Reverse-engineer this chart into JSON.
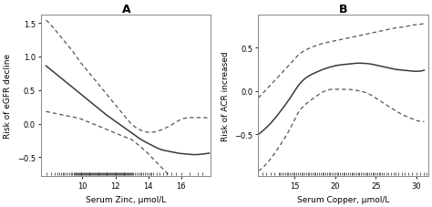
{
  "panel_A": {
    "title": "A",
    "xlabel": "Serum Zinc, μmol/L",
    "ylabel": "Risk of eGFR decline",
    "xlim": [
      7.5,
      17.8
    ],
    "ylim": [
      -0.78,
      1.62
    ],
    "yticks": [
      -0.5,
      0.0,
      0.5,
      1.0,
      1.5
    ],
    "xticks": [
      10,
      12,
      14,
      16
    ],
    "main_x": [
      7.8,
      8.2,
      8.6,
      9.0,
      9.4,
      9.8,
      10.2,
      10.6,
      11.0,
      11.4,
      11.8,
      12.2,
      12.6,
      13.0,
      13.4,
      13.8,
      14.2,
      14.6,
      15.0,
      15.4,
      15.8,
      16.2,
      16.6,
      17.0,
      17.4,
      17.7
    ],
    "main_y": [
      0.86,
      0.78,
      0.7,
      0.62,
      0.54,
      0.46,
      0.38,
      0.3,
      0.22,
      0.14,
      0.07,
      0.0,
      -0.07,
      -0.14,
      -0.21,
      -0.27,
      -0.32,
      -0.37,
      -0.4,
      -0.42,
      -0.44,
      -0.45,
      -0.46,
      -0.46,
      -0.45,
      -0.44
    ],
    "upper_y": [
      1.54,
      1.44,
      1.32,
      1.2,
      1.08,
      0.94,
      0.82,
      0.7,
      0.58,
      0.46,
      0.34,
      0.22,
      0.1,
      -0.01,
      -0.08,
      -0.12,
      -0.13,
      -0.11,
      -0.07,
      -0.02,
      0.04,
      0.08,
      0.09,
      0.09,
      0.09,
      0.08
    ],
    "lower_y": [
      0.18,
      0.16,
      0.14,
      0.12,
      0.1,
      0.08,
      0.04,
      0.0,
      -0.04,
      -0.08,
      -0.12,
      -0.16,
      -0.2,
      -0.24,
      -0.32,
      -0.4,
      -0.5,
      -0.6,
      -0.7,
      -0.8,
      -0.88,
      -0.94,
      -1.0,
      -1.04,
      -1.06,
      -1.06
    ],
    "rug_x": [
      7.8,
      8.1,
      8.3,
      8.5,
      8.6,
      8.7,
      8.8,
      8.9,
      9.0,
      9.1,
      9.2,
      9.3,
      9.4,
      9.5,
      9.55,
      9.6,
      9.65,
      9.7,
      9.75,
      9.8,
      9.85,
      9.9,
      9.95,
      10.0,
      10.05,
      10.1,
      10.15,
      10.2,
      10.25,
      10.3,
      10.35,
      10.4,
      10.45,
      10.5,
      10.55,
      10.6,
      10.65,
      10.7,
      10.75,
      10.8,
      10.85,
      10.9,
      10.95,
      11.0,
      11.05,
      11.1,
      11.15,
      11.2,
      11.25,
      11.3,
      11.35,
      11.4,
      11.45,
      11.5,
      11.55,
      11.6,
      11.65,
      11.7,
      11.75,
      11.8,
      11.85,
      11.9,
      11.95,
      12.0,
      12.05,
      12.1,
      12.15,
      12.2,
      12.25,
      12.3,
      12.35,
      12.4,
      12.45,
      12.5,
      12.55,
      12.6,
      12.65,
      12.7,
      12.75,
      12.8,
      12.85,
      12.9,
      12.95,
      13.0,
      13.1,
      13.2,
      13.3,
      13.4,
      13.5,
      13.6,
      13.7,
      13.8,
      13.9,
      14.0,
      14.1,
      14.2,
      14.3,
      14.5,
      14.7,
      14.9,
      15.1,
      15.4,
      15.7,
      16.0,
      16.5,
      17.0,
      17.3
    ]
  },
  "panel_B": {
    "title": "B",
    "xlabel": "Serum Copper, μmol/L",
    "ylabel": "Risk of ACR increased",
    "xlim": [
      10.5,
      31.5
    ],
    "ylim": [
      -0.98,
      0.88
    ],
    "yticks": [
      -0.5,
      0.0,
      0.5
    ],
    "xticks": [
      15,
      20,
      25,
      30
    ],
    "main_x": [
      10.5,
      11.5,
      12.5,
      13.5,
      14.5,
      15.5,
      16.5,
      17.5,
      18.5,
      19.5,
      20.5,
      21.5,
      22.5,
      23.5,
      24.5,
      25.0,
      25.5,
      26.5,
      27.5,
      28.5,
      29.5,
      30.5,
      31.0
    ],
    "main_y": [
      -0.5,
      -0.42,
      -0.32,
      -0.2,
      -0.07,
      0.07,
      0.16,
      0.21,
      0.25,
      0.28,
      0.3,
      0.31,
      0.32,
      0.32,
      0.31,
      0.3,
      0.29,
      0.27,
      0.25,
      0.24,
      0.23,
      0.23,
      0.24
    ],
    "upper_y": [
      -0.08,
      0.02,
      0.12,
      0.22,
      0.32,
      0.42,
      0.48,
      0.52,
      0.55,
      0.57,
      0.59,
      0.61,
      0.63,
      0.65,
      0.67,
      0.68,
      0.69,
      0.71,
      0.73,
      0.74,
      0.76,
      0.77,
      0.78
    ],
    "lower_y": [
      -0.92,
      -0.84,
      -0.72,
      -0.58,
      -0.42,
      -0.24,
      -0.14,
      -0.07,
      -0.01,
      0.02,
      0.02,
      0.02,
      0.01,
      -0.01,
      -0.05,
      -0.08,
      -0.11,
      -0.17,
      -0.23,
      -0.28,
      -0.32,
      -0.35,
      -0.35
    ],
    "rug_x": [
      11.0,
      11.5,
      12.0,
      12.5,
      13.0,
      13.2,
      13.4,
      13.6,
      13.8,
      14.0,
      14.2,
      14.4,
      14.6,
      14.8,
      15.0,
      15.2,
      15.4,
      15.6,
      15.8,
      16.0,
      16.2,
      16.4,
      16.6,
      16.8,
      17.0,
      17.2,
      17.4,
      17.6,
      17.8,
      18.0,
      18.2,
      18.4,
      18.6,
      18.8,
      19.0,
      19.2,
      19.4,
      19.6,
      19.8,
      20.0,
      20.2,
      20.4,
      20.6,
      20.8,
      21.0,
      21.2,
      21.4,
      21.6,
      21.8,
      22.0,
      22.2,
      22.4,
      22.6,
      22.8,
      23.0,
      23.2,
      23.4,
      23.6,
      23.8,
      24.0,
      24.2,
      24.4,
      24.6,
      24.8,
      25.0,
      25.2,
      25.4,
      25.6,
      25.8,
      26.0,
      26.3,
      26.6,
      26.9,
      27.2,
      27.5,
      27.8,
      28.2,
      28.6,
      29.0,
      29.5,
      30.0,
      30.5,
      31.0,
      31.3
    ]
  },
  "line_color": "#3a3a3a",
  "dashed_color": "#555555",
  "bg_color": "#ffffff",
  "rug_color": "#000000",
  "spine_color": "#888888"
}
